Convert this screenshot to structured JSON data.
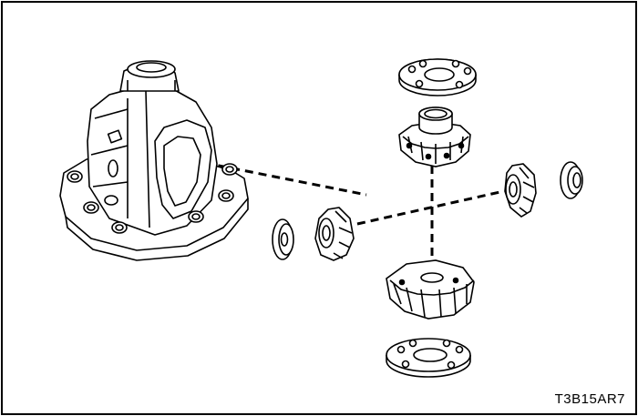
{
  "figure": {
    "code": "T3B15AR7"
  },
  "components": [
    {
      "name": "differential-case",
      "icon": "differential-case-drawing"
    },
    {
      "name": "upper-thrust-washer",
      "icon": "thrust-washer-drawing"
    },
    {
      "name": "upper-side-gear",
      "icon": "side-gear-drawing"
    },
    {
      "name": "right-pinion-gear",
      "icon": "pinion-gear-drawing"
    },
    {
      "name": "right-pinion-washer",
      "icon": "pinion-washer-drawing"
    },
    {
      "name": "left-pinion-washer",
      "icon": "pinion-washer-drawing"
    },
    {
      "name": "left-pinion-gear",
      "icon": "pinion-gear-drawing"
    },
    {
      "name": "lower-side-gear",
      "icon": "side-gear-drawing"
    },
    {
      "name": "lower-thrust-washer",
      "icon": "thrust-washer-drawing"
    }
  ],
  "colors": {
    "line": "#000000",
    "background": "#ffffff"
  }
}
